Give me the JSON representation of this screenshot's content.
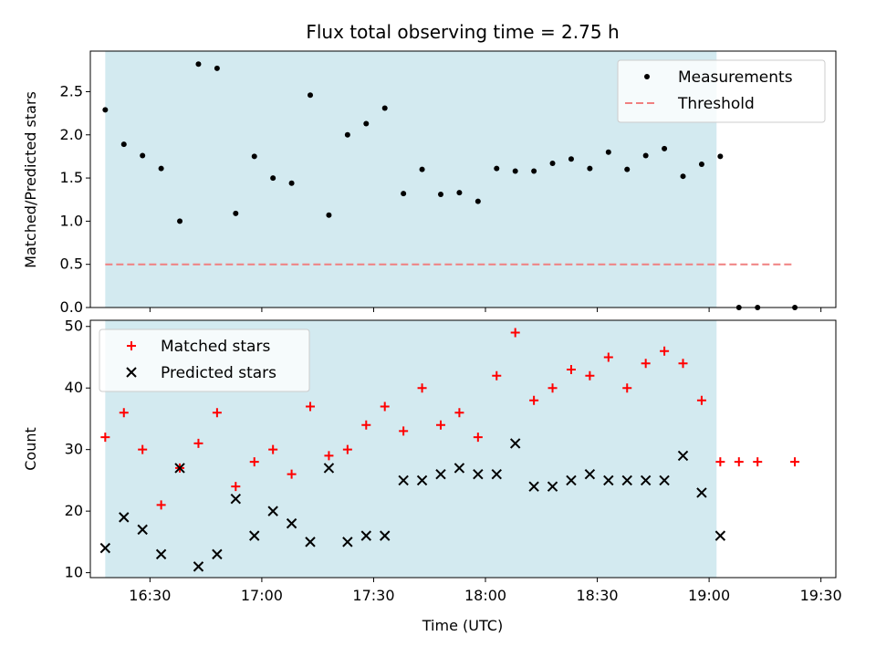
{
  "chart_data": [
    {
      "type": "scatter",
      "title": "Flux total observing time = 2.75 h",
      "ylabel": "Matched/Predicted stars",
      "xlim": [
        "16:14",
        "19:34"
      ],
      "ylim": [
        0,
        2.97
      ],
      "y_ticks": [
        0.0,
        0.5,
        1.0,
        1.5,
        2.0,
        2.5
      ],
      "y_tick_labels": [
        "0.0",
        "0.5",
        "1.0",
        "1.5",
        "2.0",
        "2.5"
      ],
      "x_ticks": [
        "16:30",
        "17:00",
        "17:30",
        "18:00",
        "18:30",
        "19:00",
        "19:30"
      ],
      "shaded_range": [
        "16:18",
        "19:02"
      ],
      "legend_position": "upper right",
      "series": [
        {
          "name": "Measurements",
          "marker": "dot",
          "color": "#000000",
          "x": [
            "16:18",
            "16:23",
            "16:28",
            "16:33",
            "16:38",
            "16:43",
            "16:48",
            "16:53",
            "16:58",
            "17:03",
            "17:08",
            "17:13",
            "17:18",
            "17:23",
            "17:28",
            "17:33",
            "17:38",
            "17:43",
            "17:48",
            "17:53",
            "17:58",
            "18:03",
            "18:08",
            "18:13",
            "18:18",
            "18:23",
            "18:28",
            "18:33",
            "18:38",
            "18:43",
            "18:48",
            "18:53",
            "18:58",
            "19:03",
            "19:08",
            "19:13",
            "19:23"
          ],
          "y": [
            2.29,
            1.89,
            1.76,
            1.61,
            1.0,
            2.82,
            2.77,
            1.09,
            1.75,
            1.5,
            1.44,
            2.46,
            1.07,
            2.0,
            2.13,
            2.31,
            1.32,
            1.6,
            1.31,
            1.33,
            1.23,
            1.61,
            1.58,
            1.58,
            1.67,
            1.72,
            1.61,
            1.8,
            1.6,
            1.76,
            1.84,
            1.52,
            1.66,
            1.75,
            0.0,
            0.0,
            0.0
          ]
        },
        {
          "name": "Threshold",
          "line_style": "dashed",
          "color": "#f08080",
          "x": [
            "16:18",
            "19:23"
          ],
          "y": [
            0.5,
            0.5
          ]
        }
      ]
    },
    {
      "type": "scatter",
      "xlabel": "Time (UTC)",
      "ylabel": "Count",
      "xlim": [
        "16:14",
        "19:34"
      ],
      "ylim": [
        9.2,
        51
      ],
      "y_ticks": [
        10,
        20,
        30,
        40,
        50
      ],
      "y_tick_labels": [
        "10",
        "20",
        "30",
        "40",
        "50"
      ],
      "x_ticks": [
        "16:30",
        "17:00",
        "17:30",
        "18:00",
        "18:30",
        "19:00",
        "19:30"
      ],
      "x_tick_labels": [
        "16:30",
        "17:00",
        "17:30",
        "18:00",
        "18:30",
        "19:00",
        "19:30"
      ],
      "shaded_range": [
        "16:18",
        "19:02"
      ],
      "legend_position": "upper left",
      "series": [
        {
          "name": "Matched stars",
          "marker": "plus",
          "color": "#ff0000",
          "x": [
            "16:18",
            "16:23",
            "16:28",
            "16:33",
            "16:38",
            "16:43",
            "16:48",
            "16:53",
            "16:58",
            "17:03",
            "17:08",
            "17:13",
            "17:18",
            "17:23",
            "17:28",
            "17:33",
            "17:38",
            "17:43",
            "17:48",
            "17:53",
            "17:58",
            "18:03",
            "18:08",
            "18:13",
            "18:18",
            "18:23",
            "18:28",
            "18:33",
            "18:38",
            "18:43",
            "18:48",
            "18:53",
            "18:58",
            "19:03",
            "19:08",
            "19:13",
            "19:23"
          ],
          "y": [
            32,
            36,
            30,
            21,
            27,
            31,
            36,
            24,
            28,
            30,
            26,
            37,
            29,
            30,
            34,
            37,
            33,
            40,
            34,
            36,
            32,
            42,
            49,
            38,
            40,
            43,
            42,
            45,
            40,
            44,
            46,
            44,
            38,
            28,
            28,
            28,
            28
          ]
        },
        {
          "name": "Predicted stars",
          "marker": "x",
          "color": "#000000",
          "x": [
            "16:18",
            "16:23",
            "16:28",
            "16:33",
            "16:38",
            "16:43",
            "16:48",
            "16:53",
            "16:58",
            "17:03",
            "17:08",
            "17:13",
            "17:18",
            "17:23",
            "17:28",
            "17:33",
            "17:38",
            "17:43",
            "17:48",
            "17:53",
            "17:58",
            "18:03",
            "18:08",
            "18:13",
            "18:18",
            "18:23",
            "18:28",
            "18:33",
            "18:38",
            "18:43",
            "18:48",
            "18:53",
            "18:58",
            "19:03"
          ],
          "y": [
            14,
            19,
            17,
            13,
            27,
            11,
            13,
            22,
            16,
            20,
            18,
            15,
            27,
            15,
            16,
            16,
            25,
            25,
            26,
            27,
            26,
            26,
            31,
            24,
            24,
            25,
            26,
            25,
            25,
            25,
            25,
            29,
            23,
            16
          ]
        }
      ]
    }
  ]
}
